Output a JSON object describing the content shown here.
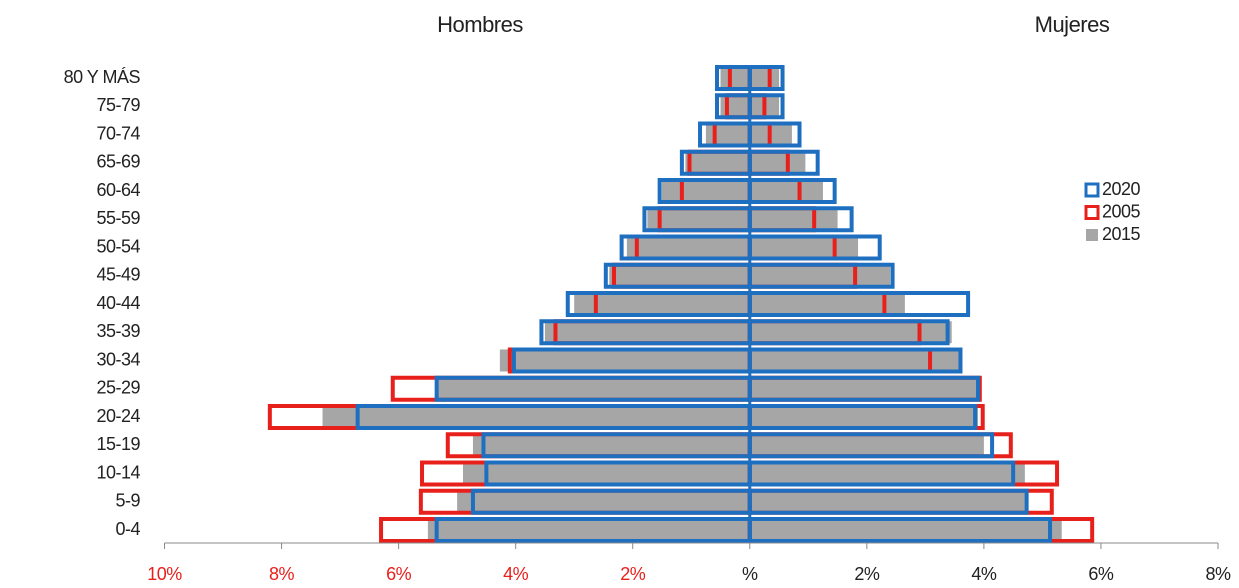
{
  "chart_data": {
    "type": "pyramid",
    "left_label": "Hombres",
    "right_label": "Mujeres",
    "categories": [
      "80 Y MÁS",
      "75-79",
      "70-74",
      "65-69",
      "60-64",
      "55-59",
      "50-54",
      "45-49",
      "40-44",
      "35-39",
      "30-34",
      "25-29",
      "20-24",
      "15-19",
      "10-14",
      "5-9",
      "0-4"
    ],
    "series": [
      {
        "name": "2020",
        "color": "#1f6fc0",
        "style": "outline",
        "hombres": [
          -0.56,
          -0.56,
          -0.85,
          -1.16,
          -1.54,
          -1.8,
          -2.19,
          -2.46,
          -3.11,
          -3.56,
          -4.03,
          -5.35,
          -6.7,
          -4.55,
          -4.5,
          -4.73,
          -5.35
        ],
        "mujeres": [
          0.56,
          0.56,
          0.85,
          1.16,
          1.45,
          1.74,
          2.22,
          2.44,
          3.73,
          3.38,
          3.6,
          3.9,
          3.85,
          4.14,
          4.5,
          4.73,
          5.13
        ]
      },
      {
        "name": "2005",
        "color": "#e8201c",
        "style": "outline",
        "hombres": [
          -0.34,
          -0.39,
          -0.6,
          -1.03,
          -1.16,
          -1.54,
          -1.93,
          -2.32,
          -2.63,
          -3.32,
          -4.1,
          -6.1,
          -8.2,
          -5.16,
          -5.6,
          -5.62,
          -6.3
        ],
        "mujeres": [
          0.34,
          0.25,
          0.34,
          0.65,
          0.85,
          1.1,
          1.45,
          1.8,
          2.3,
          2.9,
          3.08,
          3.93,
          3.98,
          4.46,
          5.25,
          5.16,
          5.85
        ]
      },
      {
        "name": "2015",
        "color": "#a6a6a6",
        "style": "fill",
        "hombres": [
          -0.5,
          -0.5,
          -0.75,
          -1.1,
          -1.5,
          -1.75,
          -2.1,
          -2.4,
          -3.0,
          -3.5,
          -4.27,
          -5.35,
          -7.3,
          -4.73,
          -4.9,
          -5.0,
          -5.5
        ],
        "mujeres": [
          0.5,
          0.5,
          0.72,
          0.95,
          1.25,
          1.5,
          1.85,
          2.4,
          2.65,
          3.45,
          3.6,
          3.9,
          3.9,
          4.0,
          4.7,
          4.7,
          5.33
        ]
      }
    ],
    "xlim": [
      -10,
      8
    ],
    "xticks": [
      {
        "value": -10,
        "label": "10%"
      },
      {
        "value": -8,
        "label": "8%"
      },
      {
        "value": -6,
        "label": "6%"
      },
      {
        "value": -4,
        "label": "4%"
      },
      {
        "value": -2,
        "label": "2%"
      },
      {
        "value": 0,
        "label": "%"
      },
      {
        "value": 2,
        "label": "2%"
      },
      {
        "value": 4,
        "label": "4%"
      },
      {
        "value": 6,
        "label": "6%"
      },
      {
        "value": 8,
        "label": "8%"
      }
    ],
    "negative_tick_color": "#e8201c",
    "legend": "right"
  }
}
